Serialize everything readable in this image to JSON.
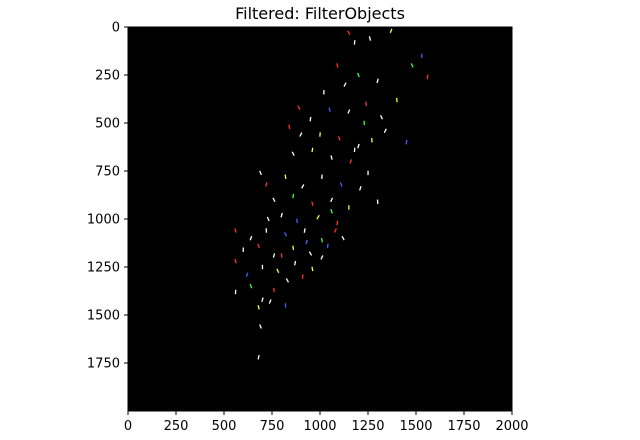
{
  "window": {
    "title": "Filtered: FilterObjects"
  },
  "colors": {
    "plot_background": "#000000",
    "axis": "#000000",
    "page_background": "#ffffff"
  },
  "chart_data": {
    "type": "scatter",
    "title": "Filtered: FilterObjects",
    "xlim": [
      0,
      2000
    ],
    "ylim": [
      2000,
      0
    ],
    "x_ticks": [
      0,
      250,
      500,
      750,
      1000,
      1250,
      1500,
      1750,
      2000
    ],
    "x_tick_labels": [
      "0",
      "250",
      "500",
      "750",
      "1000",
      "1250",
      "1500",
      "1750",
      "2000"
    ],
    "y_ticks": [
      0,
      250,
      500,
      750,
      1000,
      1250,
      1500,
      1750
    ],
    "y_tick_labels": [
      "0",
      "250",
      "500",
      "750",
      "1000",
      "1250",
      "1500",
      "1750"
    ],
    "xlabel": "",
    "ylabel": "",
    "grid": false,
    "points": [
      {
        "x": 1150,
        "y": 30,
        "color": "#ff3030"
      },
      {
        "x": 1180,
        "y": 80,
        "color": "#ffffff"
      },
      {
        "x": 1260,
        "y": 60,
        "color": "#ffffff"
      },
      {
        "x": 1370,
        "y": 20,
        "color": "#ffff40"
      },
      {
        "x": 1530,
        "y": 150,
        "color": "#4060ff"
      },
      {
        "x": 1480,
        "y": 200,
        "color": "#40ff40"
      },
      {
        "x": 1560,
        "y": 260,
        "color": "#ff3030"
      },
      {
        "x": 1090,
        "y": 200,
        "color": "#ff3030"
      },
      {
        "x": 1130,
        "y": 300,
        "color": "#ffffff"
      },
      {
        "x": 1020,
        "y": 340,
        "color": "#ffffff"
      },
      {
        "x": 1200,
        "y": 250,
        "color": "#40ff40"
      },
      {
        "x": 1300,
        "y": 280,
        "color": "#ffffff"
      },
      {
        "x": 1400,
        "y": 380,
        "color": "#ffff40"
      },
      {
        "x": 890,
        "y": 420,
        "color": "#ff3030"
      },
      {
        "x": 950,
        "y": 480,
        "color": "#ffffff"
      },
      {
        "x": 1050,
        "y": 430,
        "color": "#4060ff"
      },
      {
        "x": 1150,
        "y": 440,
        "color": "#ffffff"
      },
      {
        "x": 1230,
        "y": 500,
        "color": "#40ff40"
      },
      {
        "x": 1320,
        "y": 470,
        "color": "#ffffff"
      },
      {
        "x": 1450,
        "y": 600,
        "color": "#4060ff"
      },
      {
        "x": 840,
        "y": 520,
        "color": "#ff3030"
      },
      {
        "x": 900,
        "y": 560,
        "color": "#ffffff"
      },
      {
        "x": 1000,
        "y": 560,
        "color": "#ffff40"
      },
      {
        "x": 1100,
        "y": 580,
        "color": "#ff3030"
      },
      {
        "x": 1200,
        "y": 620,
        "color": "#ffffff"
      },
      {
        "x": 1270,
        "y": 590,
        "color": "#ffff40"
      },
      {
        "x": 860,
        "y": 660,
        "color": "#ffffff"
      },
      {
        "x": 960,
        "y": 640,
        "color": "#ffff40"
      },
      {
        "x": 1060,
        "y": 680,
        "color": "#ffffff"
      },
      {
        "x": 1160,
        "y": 700,
        "color": "#ff3030"
      },
      {
        "x": 1250,
        "y": 760,
        "color": "#ffffff"
      },
      {
        "x": 690,
        "y": 760,
        "color": "#ffffff"
      },
      {
        "x": 720,
        "y": 820,
        "color": "#ff3030"
      },
      {
        "x": 820,
        "y": 780,
        "color": "#ffff40"
      },
      {
        "x": 910,
        "y": 830,
        "color": "#ffffff"
      },
      {
        "x": 1010,
        "y": 780,
        "color": "#ffffff"
      },
      {
        "x": 1110,
        "y": 820,
        "color": "#4060ff"
      },
      {
        "x": 1210,
        "y": 840,
        "color": "#ffffff"
      },
      {
        "x": 1300,
        "y": 910,
        "color": "#ffffff"
      },
      {
        "x": 760,
        "y": 900,
        "color": "#ffffff"
      },
      {
        "x": 860,
        "y": 880,
        "color": "#40ff40"
      },
      {
        "x": 960,
        "y": 920,
        "color": "#ff3030"
      },
      {
        "x": 1060,
        "y": 900,
        "color": "#ffffff"
      },
      {
        "x": 1150,
        "y": 940,
        "color": "#ffff40"
      },
      {
        "x": 730,
        "y": 1000,
        "color": "#ffffff"
      },
      {
        "x": 800,
        "y": 980,
        "color": "#ffffff"
      },
      {
        "x": 880,
        "y": 1010,
        "color": "#4060ff"
      },
      {
        "x": 990,
        "y": 990,
        "color": "#ffff40"
      },
      {
        "x": 1090,
        "y": 1020,
        "color": "#ff3030"
      },
      {
        "x": 560,
        "y": 1060,
        "color": "#ff3030"
      },
      {
        "x": 640,
        "y": 1100,
        "color": "#ffffff"
      },
      {
        "x": 720,
        "y": 1060,
        "color": "#ffffff"
      },
      {
        "x": 820,
        "y": 1080,
        "color": "#4060ff"
      },
      {
        "x": 920,
        "y": 1060,
        "color": "#ffffff"
      },
      {
        "x": 1010,
        "y": 1110,
        "color": "#40ff40"
      },
      {
        "x": 1080,
        "y": 1060,
        "color": "#ff3030"
      },
      {
        "x": 600,
        "y": 1160,
        "color": "#ffffff"
      },
      {
        "x": 680,
        "y": 1140,
        "color": "#ff3030"
      },
      {
        "x": 760,
        "y": 1190,
        "color": "#ffffff"
      },
      {
        "x": 860,
        "y": 1150,
        "color": "#ffff40"
      },
      {
        "x": 950,
        "y": 1180,
        "color": "#ffffff"
      },
      {
        "x": 1040,
        "y": 1140,
        "color": "#4060ff"
      },
      {
        "x": 560,
        "y": 1220,
        "color": "#ff3030"
      },
      {
        "x": 620,
        "y": 1290,
        "color": "#4060ff"
      },
      {
        "x": 700,
        "y": 1250,
        "color": "#ffffff"
      },
      {
        "x": 780,
        "y": 1270,
        "color": "#ffff40"
      },
      {
        "x": 870,
        "y": 1230,
        "color": "#ffffff"
      },
      {
        "x": 960,
        "y": 1260,
        "color": "#ffff40"
      },
      {
        "x": 1010,
        "y": 1200,
        "color": "#ffffff"
      },
      {
        "x": 560,
        "y": 1380,
        "color": "#ffffff"
      },
      {
        "x": 640,
        "y": 1350,
        "color": "#40ff40"
      },
      {
        "x": 700,
        "y": 1420,
        "color": "#ffffff"
      },
      {
        "x": 760,
        "y": 1370,
        "color": "#ff3030"
      },
      {
        "x": 830,
        "y": 1320,
        "color": "#ffffff"
      },
      {
        "x": 910,
        "y": 1300,
        "color": "#ff3030"
      },
      {
        "x": 680,
        "y": 1460,
        "color": "#ffff40"
      },
      {
        "x": 740,
        "y": 1430,
        "color": "#ffffff"
      },
      {
        "x": 820,
        "y": 1450,
        "color": "#4060ff"
      },
      {
        "x": 690,
        "y": 1560,
        "color": "#ffffff"
      },
      {
        "x": 680,
        "y": 1720,
        "color": "#ffffff"
      },
      {
        "x": 1240,
        "y": 400,
        "color": "#ff3030"
      },
      {
        "x": 1340,
        "y": 540,
        "color": "#ffffff"
      },
      {
        "x": 1180,
        "y": 640,
        "color": "#ffffff"
      },
      {
        "x": 1060,
        "y": 960,
        "color": "#40ff40"
      },
      {
        "x": 930,
        "y": 1120,
        "color": "#4060ff"
      },
      {
        "x": 800,
        "y": 1190,
        "color": "#ff3030"
      },
      {
        "x": 1120,
        "y": 1100,
        "color": "#ffffff"
      }
    ]
  }
}
